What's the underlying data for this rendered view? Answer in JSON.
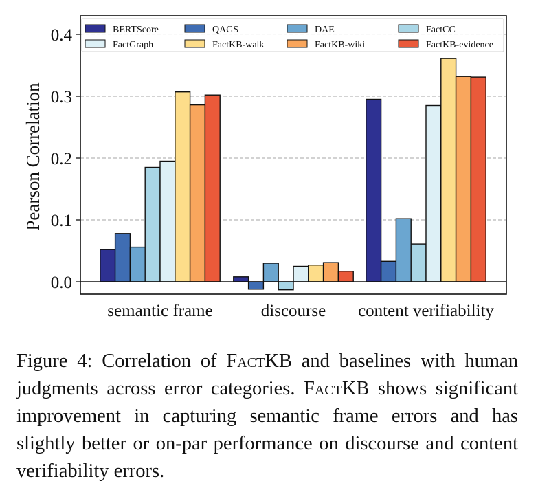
{
  "chart_data": {
    "type": "bar",
    "title": "",
    "xlabel": "",
    "ylabel": "Pearson Correlation",
    "ylim": [
      -0.02,
      0.43
    ],
    "yticks": [
      0.0,
      0.1,
      0.2,
      0.3,
      0.4
    ],
    "ytick_labels": [
      "0.0",
      "0.1",
      "0.2",
      "0.3",
      "0.4"
    ],
    "grid": "horizontal dashed",
    "legend_position": "top",
    "categories": [
      "semantic frame",
      "discourse",
      "content verifiability"
    ],
    "series": [
      {
        "name": "BERTScore",
        "color": "#2e3192",
        "values": [
          0.052,
          0.008,
          0.295
        ]
      },
      {
        "name": "QAGS",
        "color": "#3f6db3",
        "values": [
          0.078,
          -0.012,
          0.033
        ]
      },
      {
        "name": "DAE",
        "color": "#6ba6d0",
        "values": [
          0.056,
          0.03,
          0.102
        ]
      },
      {
        "name": "FactCC",
        "color": "#a9d6e6",
        "values": [
          0.185,
          -0.013,
          0.061
        ]
      },
      {
        "name": "FactGraph",
        "color": "#ddf0f6",
        "values": [
          0.195,
          0.025,
          0.285
        ]
      },
      {
        "name": "FactKB-walk",
        "color": "#fddd8a",
        "values": [
          0.307,
          0.027,
          0.361
        ]
      },
      {
        "name": "FactKB-wiki",
        "color": "#f9a65d",
        "values": [
          0.286,
          0.031,
          0.332
        ]
      },
      {
        "name": "FactKB-evidence",
        "color": "#ea5a3a",
        "values": [
          0.302,
          0.017,
          0.331
        ]
      }
    ]
  },
  "caption": {
    "label": "Figure 4:",
    "before": " Correlation of ",
    "model_name_sc": "FactKB",
    "after_model": " and baselines with human judgments across error categories. ",
    "model_name_sc_2": "FactKB",
    "rest": " shows significant improvement in capturing semantic frame errors and has slightly better or on-par performance on discourse and content verifiability errors."
  }
}
